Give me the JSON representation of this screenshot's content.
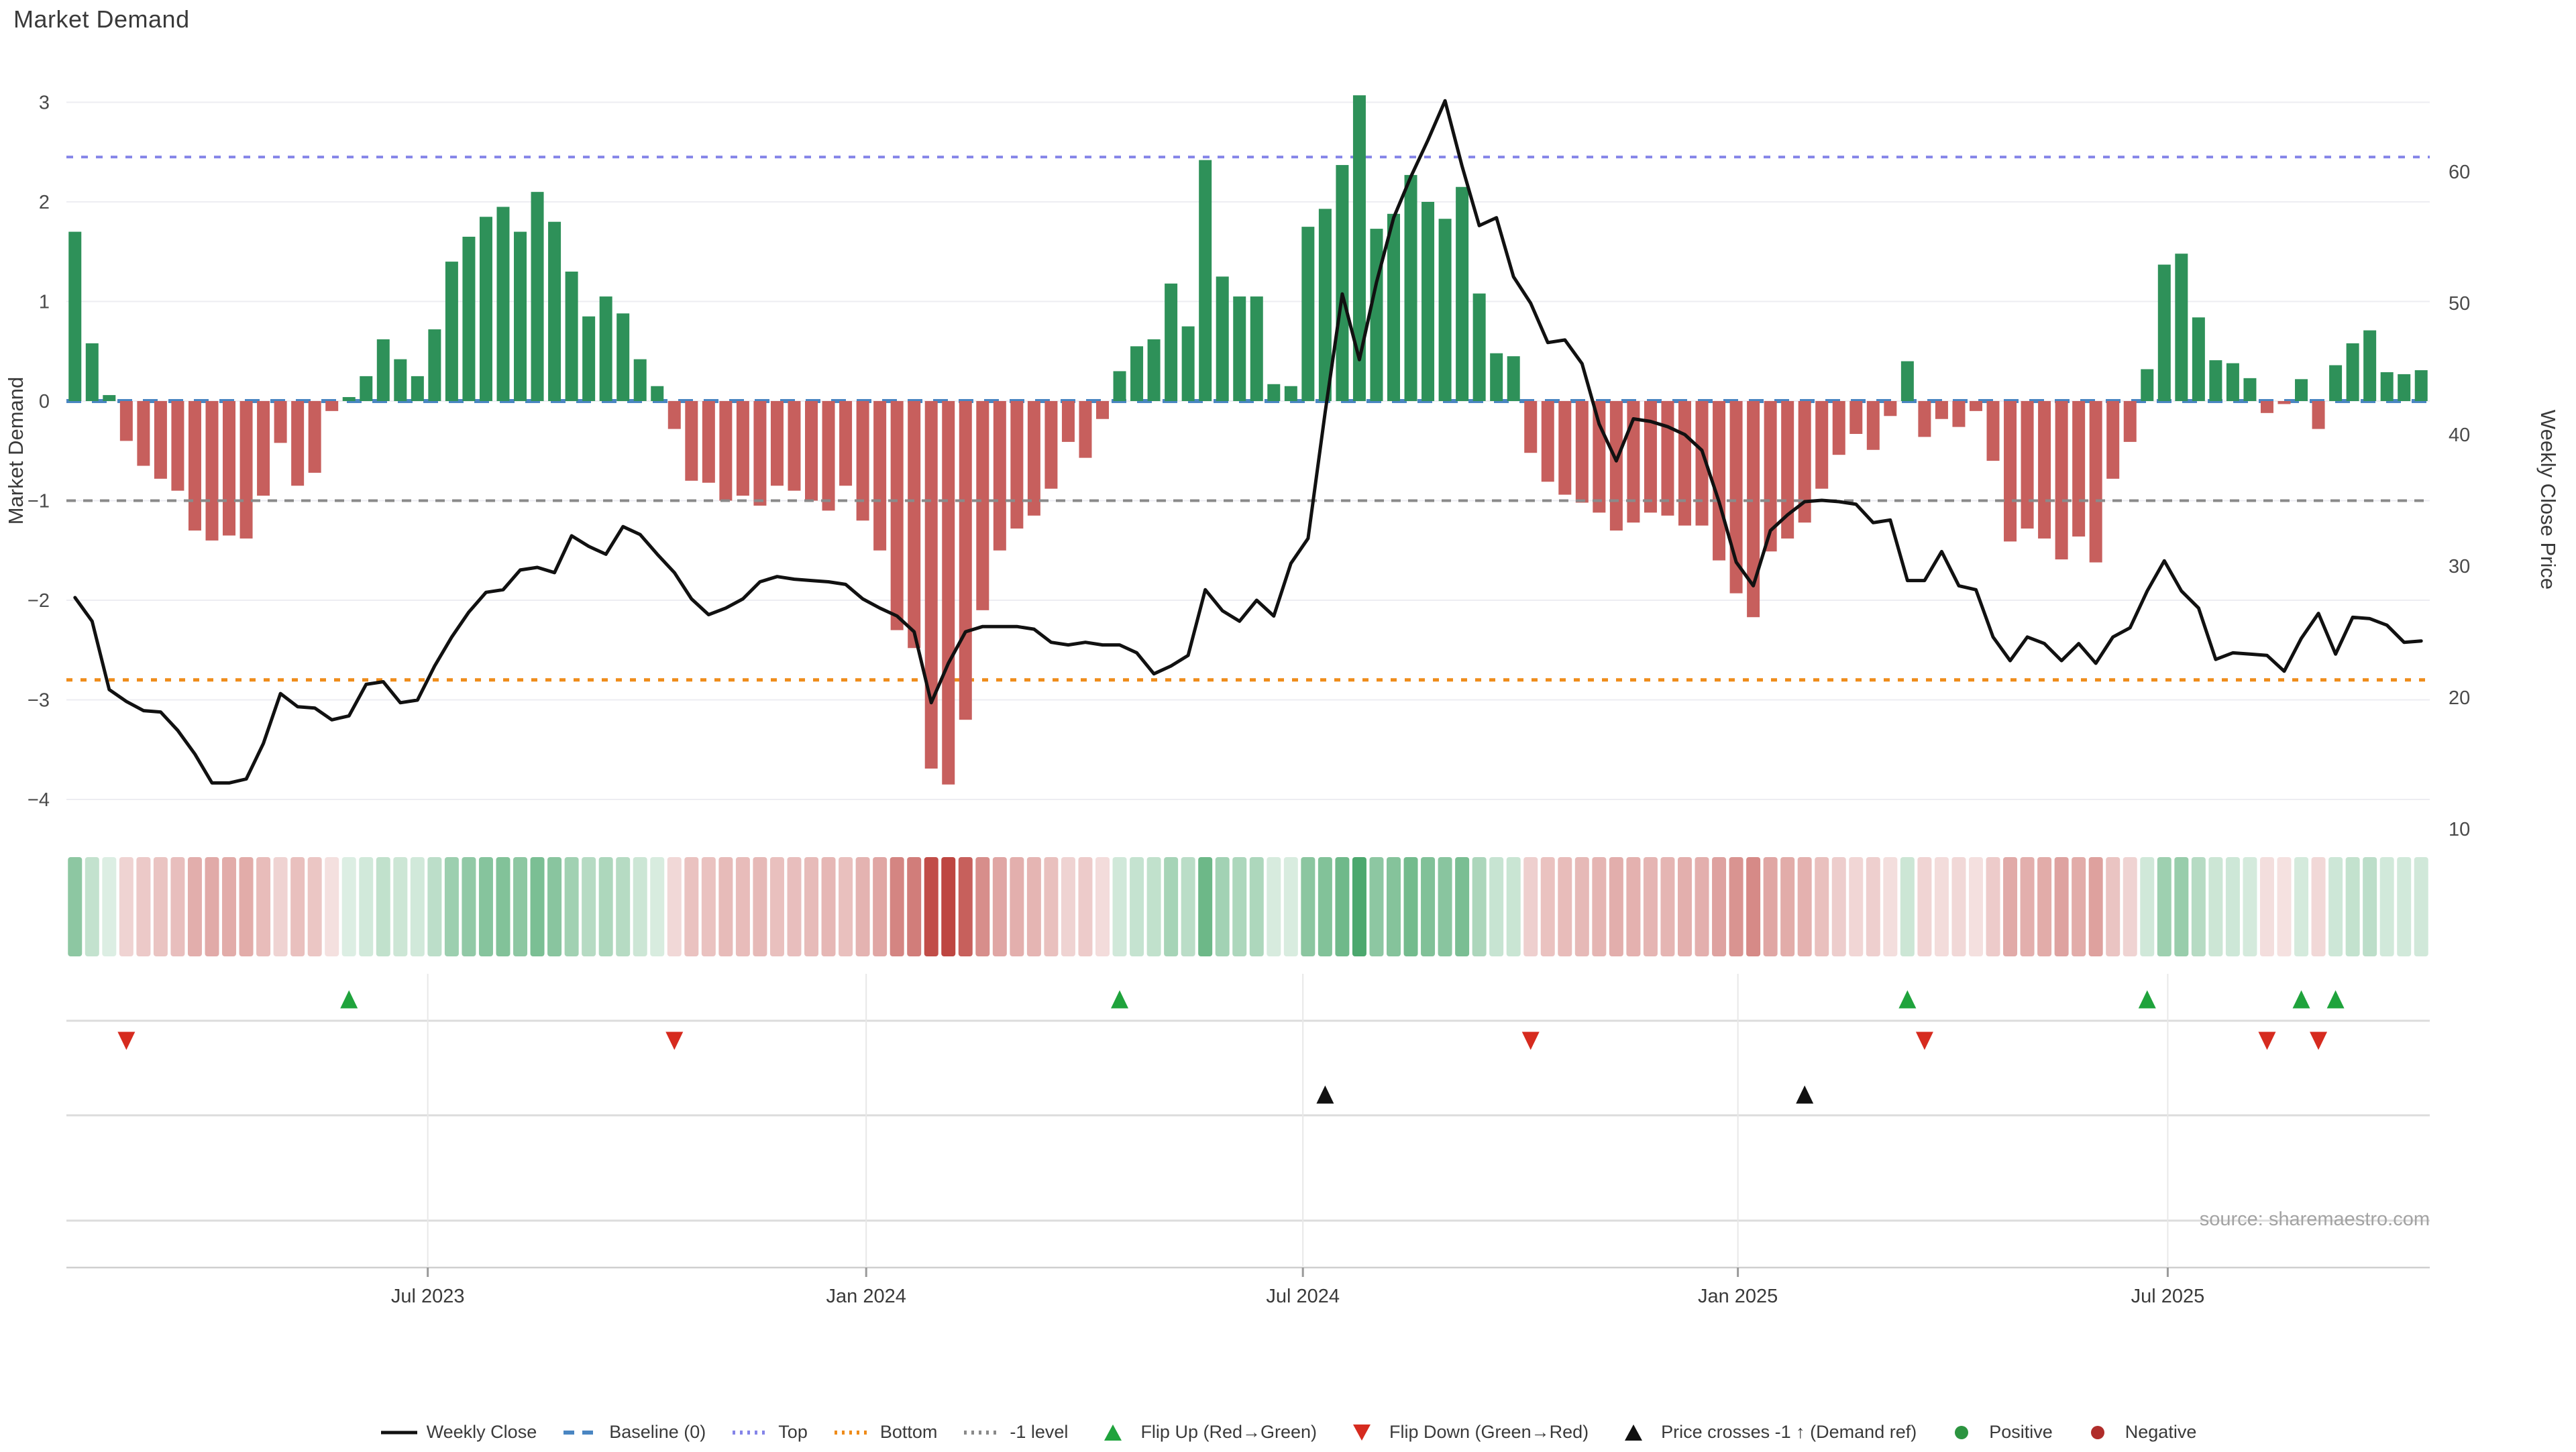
{
  "title": "Market Demand",
  "source": "source: sharemaestro.com",
  "axes": {
    "left": {
      "label": "Market Demand",
      "ticks": [
        "3",
        "2",
        "1",
        "0",
        "−1",
        "−2",
        "−3",
        "−4"
      ],
      "tick_values": [
        3,
        2,
        1,
        0,
        -1,
        -2,
        -3,
        -4
      ]
    },
    "right": {
      "label": "Weekly Close Price",
      "ticks": [
        "60",
        "50",
        "40",
        "30",
        "20",
        "10"
      ],
      "tick_values": [
        60,
        50,
        40,
        30,
        20,
        10
      ]
    },
    "x": {
      "ticks": [
        {
          "label": "Jul 2023",
          "week": 20.6
        },
        {
          "label": "Jan 2024",
          "week": 46.2
        },
        {
          "label": "Jul 2024",
          "week": 71.7
        },
        {
          "label": "Jan 2025",
          "week": 97.1
        },
        {
          "label": "Jul 2025",
          "week": 122.2
        }
      ]
    }
  },
  "ref_lines": {
    "baseline": {
      "value": 0,
      "label": "Baseline (0)",
      "color": "#4a86c2"
    },
    "top": {
      "value": 2.45,
      "label": "Top",
      "color": "#8585e8"
    },
    "bottom": {
      "value": -2.8,
      "label": "Bottom",
      "color": "#ef8c1a"
    },
    "minus1": {
      "value": -1,
      "label": "-1 level",
      "color": "#8a8a8a"
    }
  },
  "chart_data": {
    "type": "bar+line+heatmap",
    "x_unit": "week",
    "n_weeks": 138,
    "demand_ylim": [
      -4.45,
      3.5
    ],
    "price_ylim": [
      8,
      67
    ],
    "series": [
      {
        "name": "Market Demand (bars, left axis)",
        "values": [
          1.7,
          0.58,
          0.06,
          -0.4,
          -0.65,
          -0.78,
          -0.9,
          -1.3,
          -1.4,
          -1.35,
          -1.38,
          -0.95,
          -0.42,
          -0.85,
          -0.72,
          -0.1,
          0.04,
          0.25,
          0.62,
          0.42,
          0.25,
          0.72,
          1.4,
          1.65,
          1.85,
          1.95,
          1.7,
          2.1,
          1.8,
          1.3,
          0.85,
          1.05,
          0.88,
          0.42,
          0.15,
          -0.28,
          -0.8,
          -0.82,
          -1.0,
          -0.95,
          -1.05,
          -0.85,
          -0.9,
          -1.0,
          -1.1,
          -0.85,
          -1.2,
          -1.5,
          -2.3,
          -2.48,
          -3.69,
          -3.85,
          -3.2,
          -2.1,
          -1.5,
          -1.28,
          -1.15,
          -0.88,
          -0.41,
          -0.57,
          -0.18,
          0.3,
          0.55,
          0.62,
          1.18,
          0.75,
          2.42,
          1.25,
          1.05,
          1.05,
          0.17,
          0.15,
          1.75,
          1.93,
          2.37,
          3.07,
          1.73,
          1.88,
          2.27,
          2.0,
          1.83,
          2.15,
          1.08,
          0.48,
          0.45,
          -0.52,
          -0.81,
          -0.94,
          -1.02,
          -1.12,
          -1.3,
          -1.22,
          -1.12,
          -1.15,
          -1.25,
          -1.25,
          -1.6,
          -1.93,
          -2.17,
          -1.51,
          -1.38,
          -1.22,
          -0.88,
          -0.54,
          -0.33,
          -0.49,
          -0.15,
          0.4,
          -0.36,
          -0.18,
          -0.26,
          -0.1,
          -0.6,
          -1.41,
          -1.28,
          -1.38,
          -1.59,
          -1.36,
          -1.62,
          -0.78,
          -0.41,
          0.32,
          1.37,
          1.48,
          0.84,
          0.41,
          0.38,
          0.23,
          -0.12,
          -0.03,
          0.22,
          -0.28,
          0.36,
          0.58,
          0.71,
          0.29,
          0.27,
          0.31
        ]
      },
      {
        "name": "Weekly Close (line, right axis)",
        "values": [
          27.6,
          25.8,
          20.6,
          19.7,
          19.0,
          18.9,
          17.5,
          15.7,
          13.5,
          13.5,
          13.8,
          16.5,
          20.3,
          19.3,
          19.2,
          18.3,
          18.6,
          21.0,
          21.2,
          19.6,
          19.8,
          22.4,
          24.6,
          26.5,
          28.0,
          28.2,
          29.7,
          29.9,
          29.5,
          32.3,
          31.5,
          30.9,
          33.0,
          32.4,
          30.9,
          29.5,
          27.5,
          26.3,
          26.8,
          27.5,
          28.8,
          29.2,
          29.0,
          28.9,
          28.8,
          28.6,
          27.5,
          26.8,
          26.2,
          25.0,
          19.6,
          22.6,
          25.0,
          25.4,
          25.4,
          25.4,
          25.2,
          24.2,
          24.0,
          24.2,
          24.0,
          24.0,
          23.4,
          21.8,
          22.4,
          23.2,
          28.2,
          26.6,
          25.8,
          27.4,
          26.2,
          30.2,
          32.1,
          41.7,
          50.7,
          45.7,
          51.6,
          56.5,
          59.6,
          62.4,
          65.4,
          60.4,
          55.9,
          56.5,
          52.0,
          50.0,
          47.0,
          47.2,
          45.4,
          40.8,
          38.0,
          41.2,
          41.0,
          40.6,
          40.0,
          38.8,
          34.9,
          30.3,
          28.5,
          32.7,
          33.9,
          34.9,
          35.0,
          34.9,
          34.7,
          33.3,
          33.5,
          28.9,
          28.9,
          31.1,
          28.5,
          28.2,
          24.6,
          22.8,
          24.6,
          24.1,
          22.8,
          24.1,
          22.6,
          24.6,
          25.3,
          28.1,
          30.4,
          28.1,
          26.8,
          22.9,
          23.4,
          23.3,
          23.2,
          22.0,
          24.5,
          26.4,
          23.3,
          26.1,
          26.0,
          25.5,
          24.2,
          24.3
        ]
      }
    ],
    "markers": {
      "flip_up_weeks": [
        16,
        61,
        107,
        121,
        130,
        132
      ],
      "flip_down_weeks": [
        3,
        35,
        85,
        108,
        128,
        131
      ],
      "price_cross_weeks": [
        73,
        101
      ]
    },
    "heatmap": {
      "note": "weekly strip colored by demand sign/intensity",
      "max_abs": 3.85
    }
  },
  "legend": {
    "items": [
      {
        "label": "Weekly Close",
        "symbol": "line",
        "color": "#111111"
      },
      {
        "label": "Baseline (0)",
        "symbol": "dashes",
        "color": "#4a86c2"
      },
      {
        "label": "Top",
        "symbol": "dots",
        "color": "#8585e8"
      },
      {
        "label": "Bottom",
        "symbol": "dots",
        "color": "#ef8c1a"
      },
      {
        "label": "-1 level",
        "symbol": "dots",
        "color": "#8a8a8a"
      },
      {
        "label": "Flip Up (Red→Green)",
        "symbol": "tri-up",
        "color": "#1fa33c"
      },
      {
        "label": "Flip Down (Green→Red)",
        "symbol": "tri-down",
        "color": "#d62b1f"
      },
      {
        "label": "Price crosses -1 ↑ (Demand ref)",
        "symbol": "tri-up",
        "color": "#111111"
      },
      {
        "label": "Positive",
        "symbol": "circle",
        "color": "#2c9440"
      },
      {
        "label": "Negative",
        "symbol": "circle",
        "color": "#b02d2a"
      }
    ]
  },
  "colors": {
    "bar_positive": "#2e9159",
    "bar_negative": "#c75f5d",
    "price_line": "#111111",
    "grid": "#ededf2",
    "lane_grid": "#dcdcdc",
    "vlane_grid": "#e8e8e8",
    "axis_line": "#cfcfcf",
    "tick_text": "#4a4a4a",
    "label_text": "#3a3a3a",
    "heat_green": "40,150,80",
    "heat_red": "190,70,65",
    "marker_up": "#1fa33c",
    "marker_down": "#d62b1f",
    "marker_cross": "#111111"
  }
}
